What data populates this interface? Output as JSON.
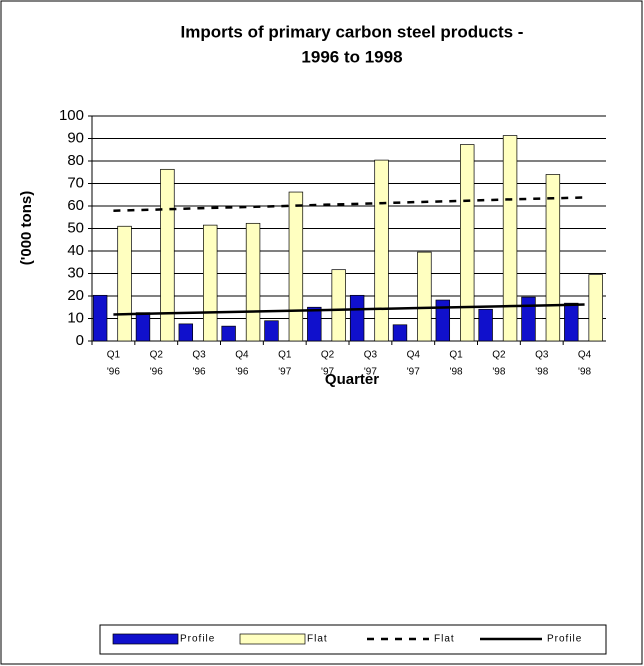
{
  "chart_data": {
    "type": "bar",
    "title": [
      "Imports of primary carbon steel products -",
      "1996 to 1998"
    ],
    "x_label": "Quarter",
    "y_label": "('000 tons)",
    "categories": [
      [
        "Q1",
        "'96"
      ],
      [
        "Q2",
        "'96"
      ],
      [
        "Q3",
        "'96"
      ],
      [
        "Q4",
        "'96"
      ],
      [
        "Q1",
        "'97"
      ],
      [
        "Q2",
        "'97"
      ],
      [
        "Q3",
        "'97"
      ],
      [
        "Q4",
        "'97"
      ],
      [
        "Q1",
        "'98"
      ],
      [
        "Q2",
        "'98"
      ],
      [
        "Q3",
        "'98"
      ],
      [
        "Q4",
        "'98"
      ]
    ],
    "series": [
      {
        "name": "Profile",
        "type": "bar",
        "color": "#1010cc",
        "values": [
          20.3,
          12.6,
          7.6,
          6.6,
          9,
          15,
          20.3,
          7.2,
          18.2,
          14.1,
          19.5,
          16.8
        ]
      },
      {
        "name": "Flat",
        "type": "bar",
        "color": "#ffffc0",
        "values": [
          51,
          76.3,
          51.5,
          52.3,
          66.2,
          31.7,
          80.4,
          39.5,
          87.3,
          91.3,
          74,
          29.5
        ]
      },
      {
        "name": "Flat",
        "type": "line",
        "dash": true,
        "color": "#000000",
        "values": [
          57.9,
          58.4,
          59.0,
          59.5,
          60.0,
          60.6,
          61.1,
          61.7,
          62.2,
          62.8,
          63.3,
          63.8
        ]
      },
      {
        "name": "Profile",
        "type": "line",
        "dash": false,
        "color": "#000000",
        "values": [
          11.8,
          12.2,
          12.6,
          13.0,
          13.4,
          13.8,
          14.2,
          14.6,
          15.0,
          15.4,
          15.8,
          16.2
        ]
      }
    ],
    "ylim": [
      0,
      100
    ],
    "yticks": [
      0,
      10,
      20,
      30,
      40,
      50,
      60,
      70,
      80,
      90,
      100
    ],
    "grid": true,
    "legend": "bottom"
  }
}
